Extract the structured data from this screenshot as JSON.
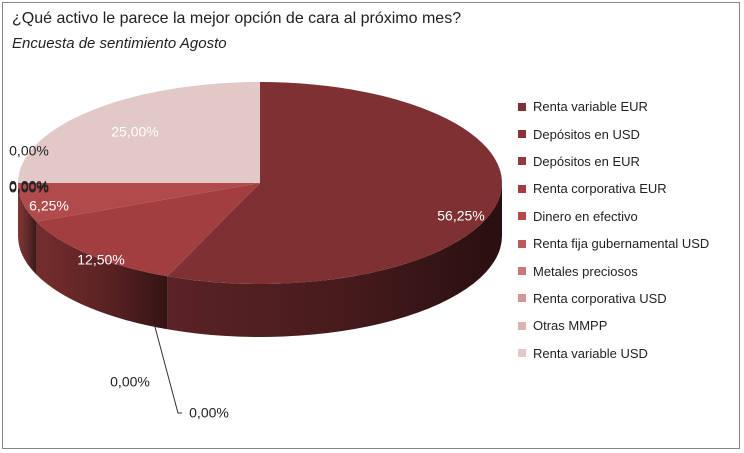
{
  "chart_data": {
    "type": "pie",
    "title": "¿Qué activo le parece la mejor opción de cara al próximo mes?",
    "subtitle": "Encuesta de sentimiento Agosto",
    "style": "3d",
    "legend_position": "right",
    "slices": [
      {
        "label": "Renta variable EUR",
        "value": 56.25,
        "data_label": "56,25%",
        "color": "#7f3033"
      },
      {
        "label": "Depósitos en USD",
        "value": 0,
        "data_label": "0,00%",
        "color": "#8a3436"
      },
      {
        "label": "Depósitos en EUR",
        "value": 0,
        "data_label": "0,00%",
        "color": "#953a3c"
      },
      {
        "label": "Renta corporativa EUR",
        "value": 12.5,
        "data_label": "12,50%",
        "color": "#a33e40"
      },
      {
        "label": "Dinero en efectivo",
        "value": 6.25,
        "data_label": "6,25%",
        "color": "#b04a4b"
      },
      {
        "label": "Renta fija gubernamental USD",
        "value": 0,
        "data_label": "0,00%",
        "color": "#bb5a5a"
      },
      {
        "label": "Metales preciosos",
        "value": 0,
        "data_label": "0,00%",
        "color": "#c87878"
      },
      {
        "label": "Renta corporativa USD",
        "value": 0,
        "data_label": "0,00%",
        "color": "#d39595"
      },
      {
        "label": "Otras MMPP",
        "value": 0,
        "data_label": "0,00%",
        "color": "#ddb3b2"
      },
      {
        "label": "Renta variable USD",
        "value": 25,
        "data_label": "25,00%",
        "color": "#e2c8c7"
      }
    ]
  }
}
